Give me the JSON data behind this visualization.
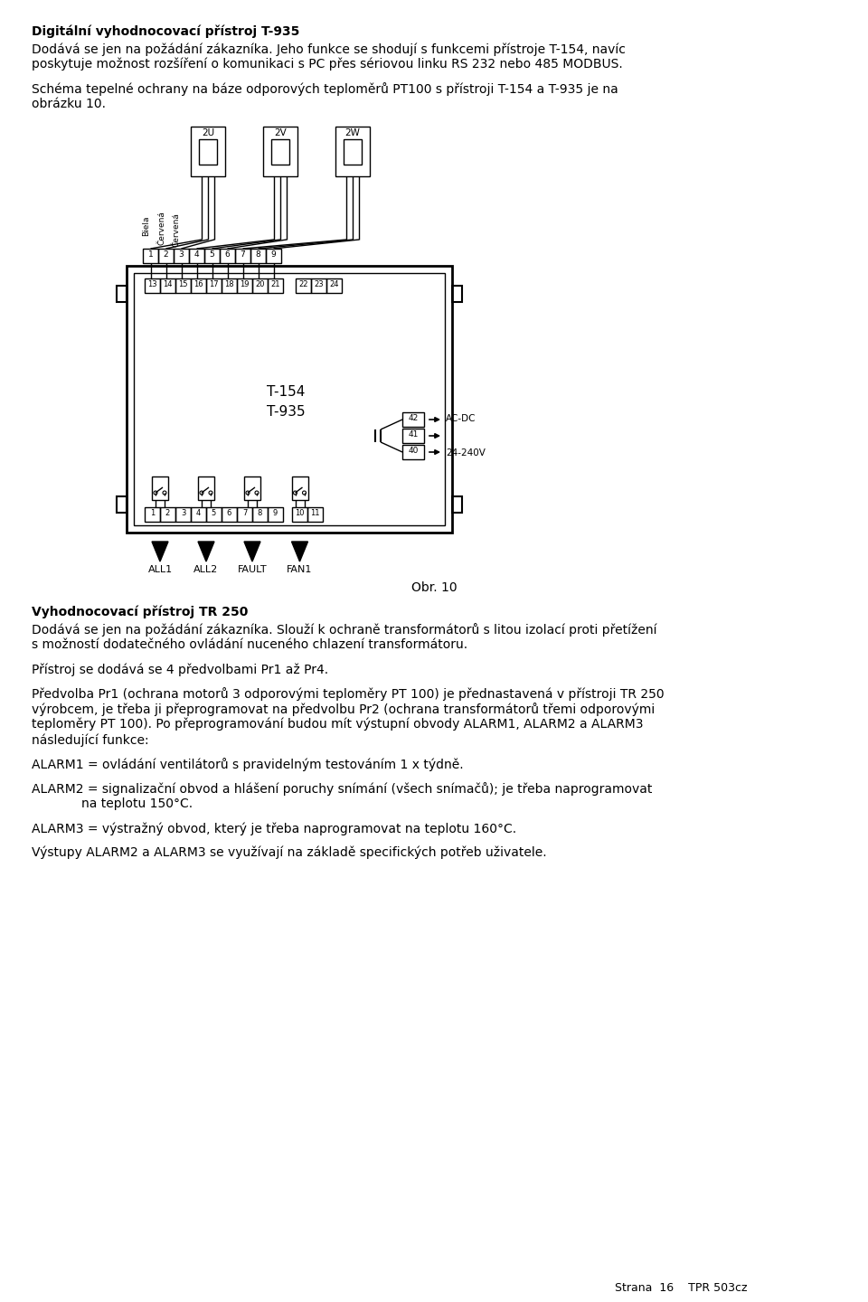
{
  "title_bold": "Digitální vyhodnocovací přístroj T-935",
  "para1_l1": "Dodává se jen na požádání zákazníka. Jeho funkce se shodují s funkcemi přístroje T-154, navíc",
  "para1_l2": "poskytuje možnost rozšíření o komunikaci s PC přes sériovou linku RS 232 nebo 485 MODBUS.",
  "para2_l1": "Schéma tepelné ochrany na báze odporových teploměrů PT100 s přístroji T-154 a T-935 je na",
  "para2_l2": "obrázku 10.",
  "obr_caption": "Obr. 10",
  "section2_bold": "Vyhodnocovací přístroj TR 250",
  "para3_l1": "Dodává se jen na požádání zákazníka. Slouží k ochraně transformátorů s litou izolací proti přetížení",
  "para3_l2": "s možností dodatečného ovládání nuceného chlazení transformátoru.",
  "para4": "Přístroj se dodává se 4 předvolbami Pr1 až Pr4.",
  "para5_l1": "Předvolba Pr1 (ochrana motorů 3 odporovými teploměry PT 100) je přednastavená v přístroji TR 250",
  "para5_l2": "výrobcem, je třeba ji přeprogramovat na předvolbu Pr2 (ochrana transformátorů třemi odporovými",
  "para5_l3": "teploměry PT 100). Po přeprogramování budou mít výstupní obvody ALARM1, ALARM2 a ALARM3",
  "para5_l4": "následující funkce:",
  "alarm1": "ALARM1 = ovládání ventilátorů s pravidelným testováním 1 x týdně.",
  "alarm2_l1": "ALARM2 = signalizační obvod a hlášení poruchy snímání (všech snímačů); je třeba naprogramovat",
  "alarm2_l2": "             na teplotu 150°C.",
  "alarm3": "ALARM3 = výstražný obvod, který je třeba naprogramovat na teplotu 160°C.",
  "closing": "Výstupy ALARM2 a ALARM3 se využívají na základě specifických potřeb uživatele.",
  "footer": "Strana  16    TPR 503cz",
  "bg_color": "#ffffff",
  "sensor_labels": [
    "2U",
    "2V",
    "2W"
  ],
  "term1_labels": [
    "1",
    "2",
    "3",
    "4",
    "5",
    "6",
    "7",
    "8",
    "9"
  ],
  "term2_labels": [
    "13",
    "14",
    "15",
    "16",
    "17",
    "18",
    "19",
    "20",
    "21"
  ],
  "term3_labels": [
    "22",
    "23",
    "24"
  ],
  "pterm_labels": [
    "42",
    "41",
    "40"
  ],
  "device_label1": "T-154",
  "device_label2": "T-935",
  "acdc_label": "AC-DC",
  "v_label": "24-240V",
  "bot_labels1": [
    "1",
    "2",
    "3",
    "4",
    "5",
    "6",
    "7",
    "8",
    "9"
  ],
  "bot_labels2": [
    "10",
    "11"
  ],
  "arrow_labels": [
    "ALL1",
    "ALL2",
    "FAULT",
    "FAN1"
  ],
  "wire_labels": [
    "Biela",
    "Červená",
    "Červená"
  ]
}
